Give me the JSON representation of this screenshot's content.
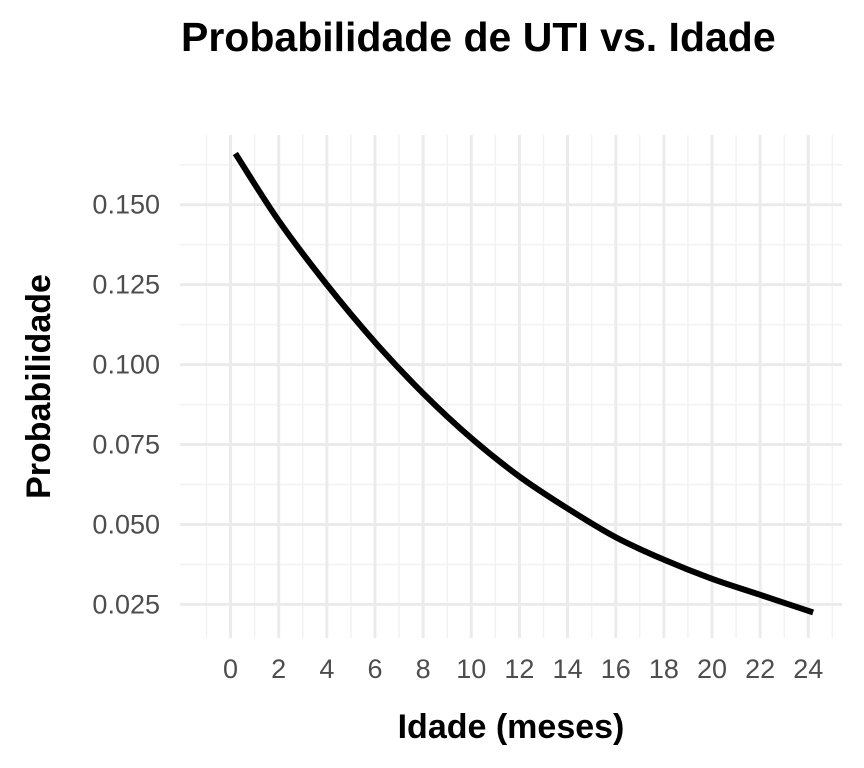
{
  "chart_data": {
    "type": "line",
    "title": "Probabilidade de UTI vs. Idade",
    "xlabel": "Idade (meses)",
    "ylabel": "Probabilidade",
    "xlim": [
      -2.1,
      25.4
    ],
    "ylim": [
      0.0145,
      0.1718
    ],
    "x_ticks": [
      0,
      2,
      4,
      6,
      8,
      10,
      12,
      14,
      16,
      18,
      20,
      22,
      24
    ],
    "y_ticks": [
      0.025,
      0.05,
      0.075,
      0.1,
      0.125,
      0.15
    ],
    "x_tick_labels": [
      "0",
      "2",
      "4",
      "6",
      "8",
      "10",
      "12",
      "14",
      "16",
      "18",
      "20",
      "22",
      "24"
    ],
    "y_tick_labels": [
      "0.025",
      "0.050",
      "0.075",
      "0.100",
      "0.125",
      "0.150"
    ],
    "grid": true,
    "legend": "none",
    "series": [
      {
        "color": "#000000",
        "x": [
          0.2,
          2,
          4,
          6,
          8,
          10,
          12,
          14,
          16,
          18,
          20,
          22,
          24.2
        ],
        "y": [
          0.166,
          0.145,
          0.125,
          0.107,
          0.091,
          0.077,
          0.065,
          0.055,
          0.046,
          0.039,
          0.033,
          0.028,
          0.0225
        ]
      }
    ]
  }
}
